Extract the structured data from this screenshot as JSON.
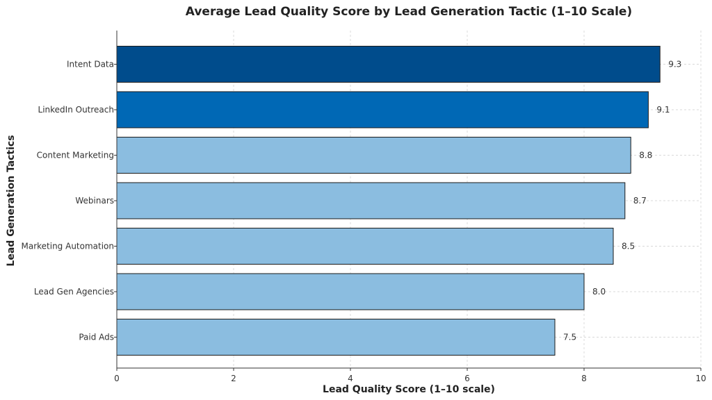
{
  "chart_data": {
    "type": "bar",
    "orientation": "horizontal",
    "title": "Average Lead Quality Score by Lead Generation Tactic (1–10 Scale)",
    "xlabel": "Lead Quality Score (1–10 scale)",
    "ylabel": "Lead Generation Tactics",
    "xlim": [
      0,
      10
    ],
    "xticks": [
      "0",
      "2",
      "4",
      "6",
      "8",
      "10"
    ],
    "categories": [
      "Intent Data",
      "LinkedIn Outreach",
      "Content Marketing",
      "Webinars",
      "Marketing Automation",
      "Lead Gen Agencies",
      "Paid Ads"
    ],
    "values": [
      9.3,
      9.1,
      8.8,
      8.7,
      8.5,
      8.0,
      7.5
    ],
    "value_labels": [
      "9.3",
      "9.1",
      "8.8",
      "8.7",
      "8.5",
      "8.0",
      "7.5"
    ],
    "bar_colors": [
      "#004c8c",
      "#0068b5",
      "#8bbde0",
      "#8bbde0",
      "#8bbde0",
      "#8bbde0",
      "#8bbde0"
    ],
    "grid": true,
    "legend": "none"
  }
}
